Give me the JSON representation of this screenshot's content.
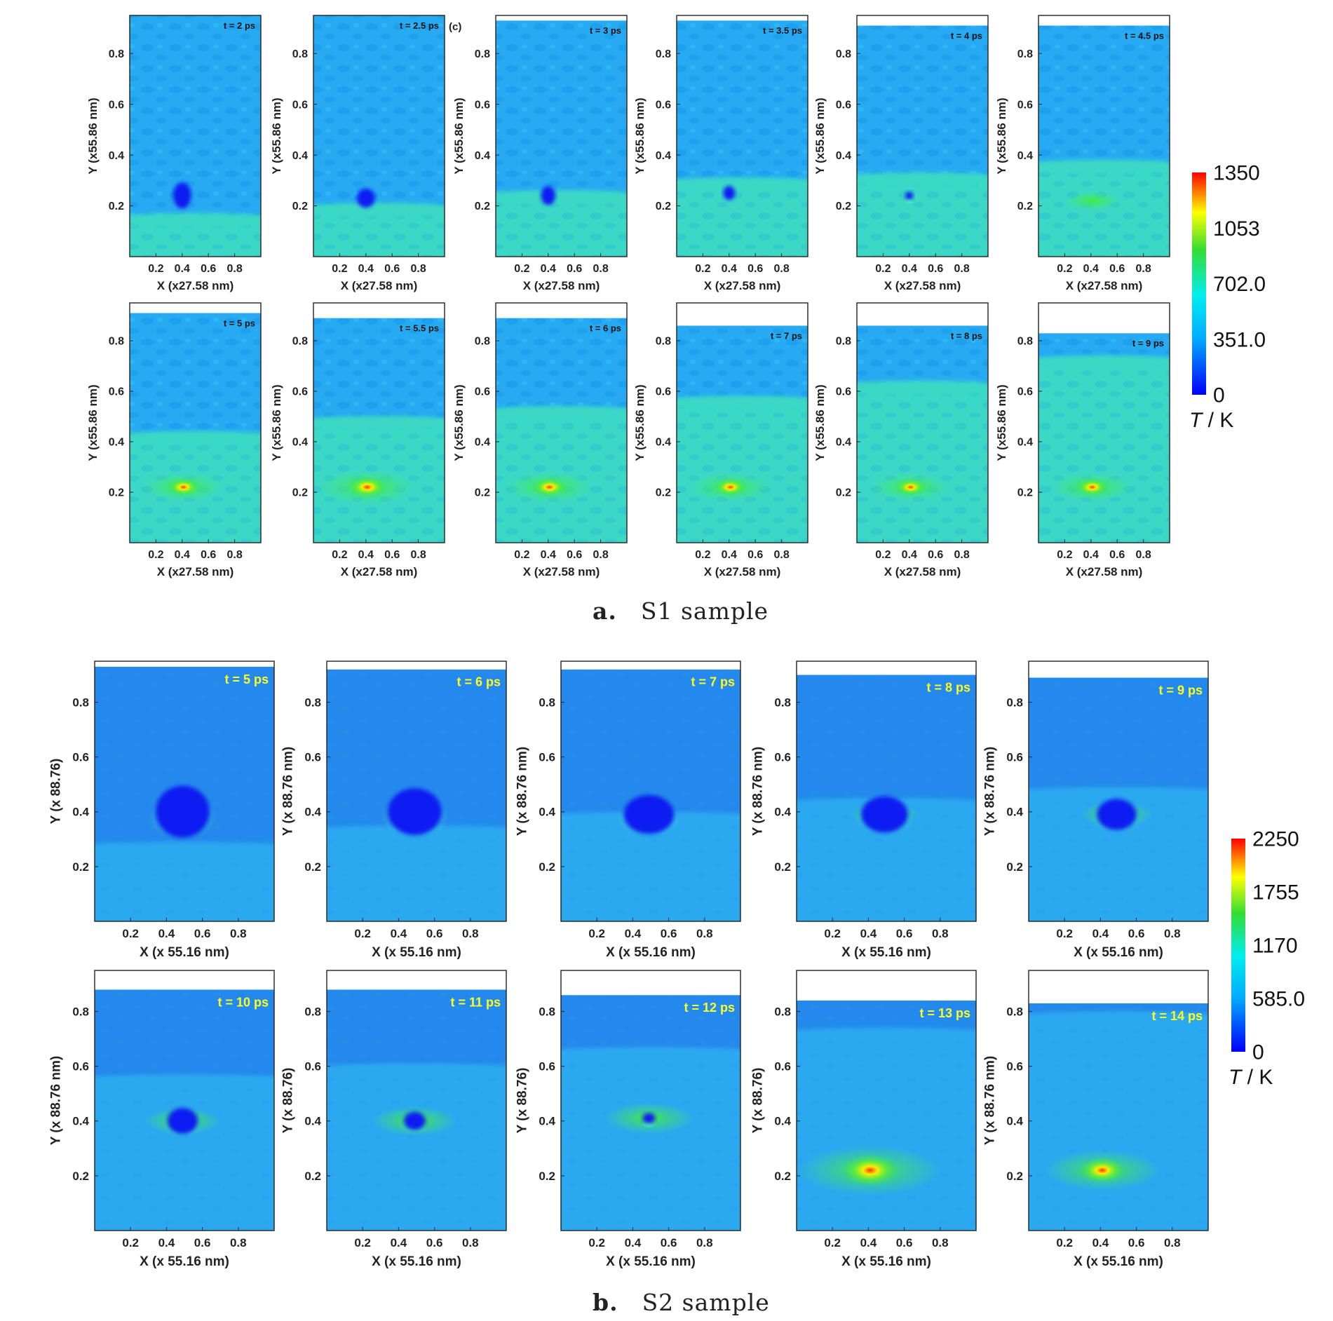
{
  "chart_data": [
    {
      "type": "heatmap",
      "panel_group": "a",
      "caption_letter": "a.",
      "caption_text": "S1 sample",
      "xlabel": "X (x27.58 nm)",
      "ylabel": "Y (x55.86 nm)",
      "xticks": [
        "0.2",
        "0.4",
        "0.6",
        "0.8"
      ],
      "yticks": [
        "0.2",
        "0.4",
        "0.6",
        "0.8"
      ],
      "xlim": [
        0,
        1
      ],
      "ylim": [
        0,
        0.95
      ],
      "colorbar": {
        "label_italic": "T",
        "label_unit": " / K",
        "ticks": [
          "1350",
          "1053",
          "702.0",
          "351.0",
          "0"
        ],
        "max": 1350
      },
      "time_label_color": "#111111",
      "panels": [
        {
          "time": "t = 2 ps",
          "surface_y": 0.95,
          "front_y": 0.15,
          "void": {
            "x": 0.4,
            "y": 0.24,
            "rx": 0.07,
            "ry": 0.055
          },
          "hot": 0
        },
        {
          "time": "t = 2.5 ps",
          "marker": "(c)",
          "surface_y": 0.95,
          "front_y": 0.19,
          "void": {
            "x": 0.4,
            "y": 0.23,
            "rx": 0.07,
            "ry": 0.04
          },
          "hot": 0
        },
        {
          "time": "t = 3 ps",
          "surface_y": 0.93,
          "front_y": 0.24,
          "void": {
            "x": 0.4,
            "y": 0.24,
            "rx": 0.055,
            "ry": 0.04
          },
          "hot": 0
        },
        {
          "time": "t = 3.5 ps",
          "surface_y": 0.93,
          "front_y": 0.29,
          "void": {
            "x": 0.4,
            "y": 0.25,
            "rx": 0.045,
            "ry": 0.03
          },
          "hot": 0
        },
        {
          "time": "t = 4 ps",
          "surface_y": 0.91,
          "front_y": 0.31,
          "void": {
            "x": 0.4,
            "y": 0.24,
            "rx": 0.03,
            "ry": 0.017
          },
          "hot": 0
        },
        {
          "time": "t = 4.5 ps",
          "surface_y": 0.91,
          "front_y": 0.36,
          "void": null,
          "hot": 0.15
        },
        {
          "time": "t = 5 ps",
          "surface_y": 0.91,
          "front_y": 0.42,
          "void": null,
          "hot": 0.55
        },
        {
          "time": "t = 5.5 ps",
          "surface_y": 0.89,
          "front_y": 0.48,
          "void": null,
          "hot": 0.8
        },
        {
          "time": "t = 6 ps",
          "surface_y": 0.89,
          "front_y": 0.52,
          "void": null,
          "hot": 0.65
        },
        {
          "time": "t = 7 ps",
          "surface_y": 0.86,
          "front_y": 0.56,
          "void": null,
          "hot": 0.55
        },
        {
          "time": "t = 8 ps",
          "surface_y": 0.86,
          "front_y": 0.62,
          "void": null,
          "hot": 0.5
        },
        {
          "time": "t = 9 ps",
          "surface_y": 0.83,
          "front_y": 0.72,
          "void": null,
          "hot": 0.55
        }
      ]
    },
    {
      "type": "heatmap",
      "panel_group": "b",
      "caption_letter": "b.",
      "caption_text": "S2 sample",
      "xlabel": "X (x 55.16 nm)",
      "xticks": [
        "0.2",
        "0.4",
        "0.6",
        "0.8"
      ],
      "yticks": [
        "0.2",
        "0.4",
        "0.6",
        "0.8"
      ],
      "xlim": [
        0,
        1
      ],
      "ylim": [
        0,
        0.95
      ],
      "colorbar": {
        "label_italic": "T",
        "label_unit": " / K",
        "ticks": [
          "2250",
          "1755",
          "1170",
          "585.0",
          "0"
        ],
        "max": 2250
      },
      "time_label_color": "#ffff22",
      "panels": [
        {
          "time": "t = 5 ps",
          "ylabel": "Y (x 88.76)",
          "surface_y": 0.93,
          "front_y": 0.27,
          "void": {
            "x": 0.49,
            "y": 0.4,
            "rx": 0.15,
            "ry": 0.1
          },
          "hot": 0
        },
        {
          "time": "t = 6 ps",
          "ylabel": "Y (x 88.76 nm)",
          "surface_y": 0.92,
          "front_y": 0.33,
          "void": {
            "x": 0.49,
            "y": 0.4,
            "rx": 0.15,
            "ry": 0.09
          },
          "hot": 0
        },
        {
          "time": "t = 7 ps",
          "ylabel": "Y (x 88.76 nm)",
          "surface_y": 0.92,
          "front_y": 0.38,
          "void": {
            "x": 0.49,
            "y": 0.39,
            "rx": 0.14,
            "ry": 0.075
          },
          "hot": 0
        },
        {
          "time": "t = 8 ps",
          "ylabel": "Y (x 88.76 nm)",
          "surface_y": 0.9,
          "front_y": 0.43,
          "void": {
            "x": 0.49,
            "y": 0.39,
            "rx": 0.13,
            "ry": 0.07
          },
          "hot": 0.05
        },
        {
          "time": "t = 9 ps",
          "ylabel": "Y (x 88.76 nm)",
          "surface_y": 0.89,
          "front_y": 0.47,
          "void": {
            "x": 0.49,
            "y": 0.39,
            "rx": 0.11,
            "ry": 0.06
          },
          "hot": 0.1
        },
        {
          "time": "t = 10 ps",
          "ylabel": "Y (x 88.76 nm)",
          "surface_y": 0.88,
          "front_y": 0.55,
          "void": {
            "x": 0.49,
            "y": 0.4,
            "rx": 0.085,
            "ry": 0.05
          },
          "hot": 0.15
        },
        {
          "time": "t = 11 ps",
          "ylabel": "Y (x 88.76)",
          "surface_y": 0.88,
          "front_y": 0.59,
          "void": {
            "x": 0.49,
            "y": 0.4,
            "rx": 0.06,
            "ry": 0.035
          },
          "hot": 0.25
        },
        {
          "time": "t = 12 ps",
          "ylabel": "Y (x 88.76)",
          "surface_y": 0.86,
          "front_y": 0.65,
          "void": {
            "x": 0.49,
            "y": 0.41,
            "rx": 0.035,
            "ry": 0.02
          },
          "hot": 0.3
        },
        {
          "time": "t = 13 ps",
          "ylabel": "Y (x 88.76)",
          "surface_y": 0.84,
          "front_y": 0.72,
          "void": null,
          "hot": 0.9
        },
        {
          "time": "t = 14 ps",
          "ylabel": "Y (x 88.76 nm)",
          "surface_y": 0.83,
          "front_y": 0.78,
          "void": null,
          "hot": 0.6
        }
      ]
    }
  ]
}
